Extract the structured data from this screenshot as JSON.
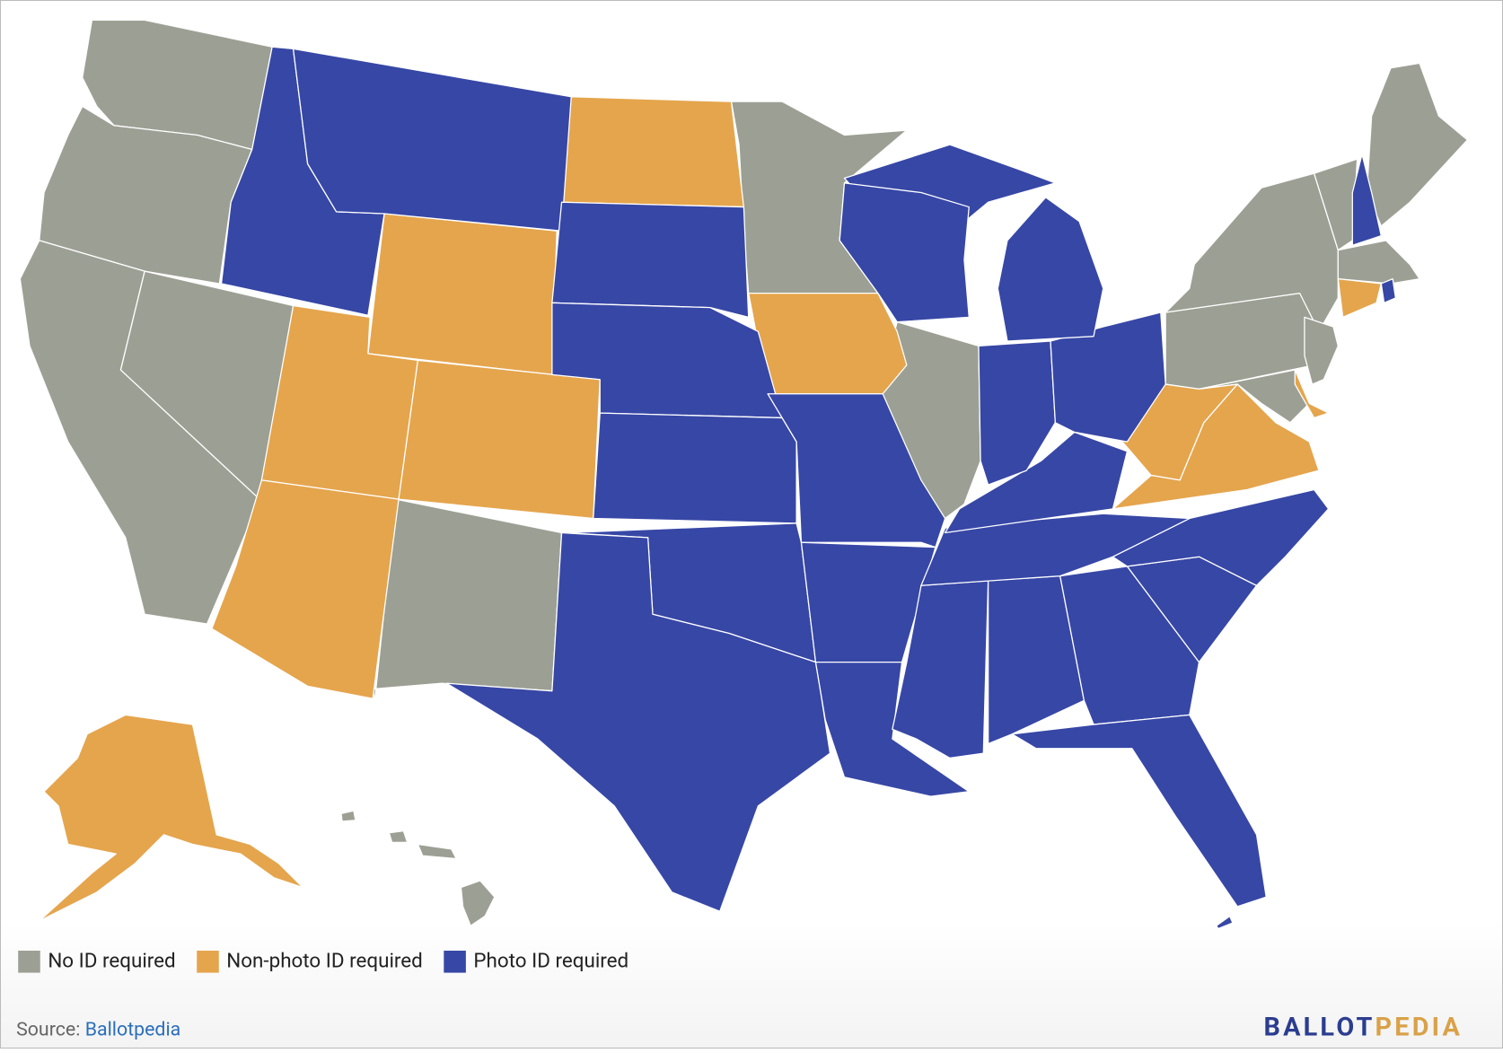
{
  "legend": [
    {
      "label": "No ID required",
      "color": "#9ca094"
    },
    {
      "label": "Non-photo ID required",
      "color": "#e5a54d"
    },
    {
      "label": "Photo ID required",
      "color": "#3747a6"
    }
  ],
  "source": {
    "label": "Source:",
    "link": "Ballotpedia"
  },
  "logo": {
    "first": "BALLOT",
    "second": "PEDIA"
  }
}
